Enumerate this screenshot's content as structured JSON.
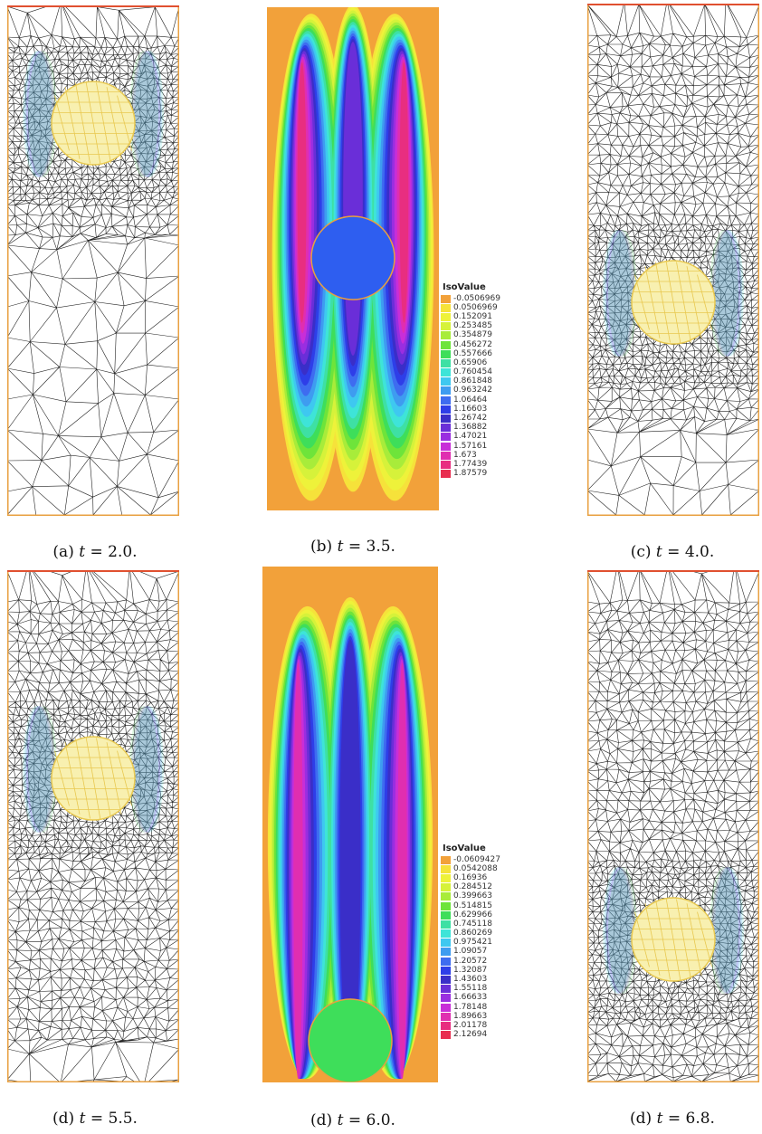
{
  "panels": [
    {
      "id": "a",
      "caption_prefix": "(a) ",
      "caption_var": "t",
      "caption_eq": " = 2.0.",
      "kind": "mesh"
    },
    {
      "id": "b",
      "caption_prefix": "(b) ",
      "caption_var": "t",
      "caption_eq": " = 3.5.",
      "kind": "isovalue"
    },
    {
      "id": "c",
      "caption_prefix": "(c) ",
      "caption_var": "t",
      "caption_eq": " = 4.0.",
      "kind": "mesh"
    },
    {
      "id": "d1",
      "caption_prefix": "(d) ",
      "caption_var": "t",
      "caption_eq": " = 5.5.",
      "kind": "mesh"
    },
    {
      "id": "d2",
      "caption_prefix": "(d) ",
      "caption_var": "t",
      "caption_eq": " = 6.0.",
      "kind": "isovalue"
    },
    {
      "id": "d3",
      "caption_prefix": "(d) ",
      "caption_var": "t",
      "caption_eq": " = 6.8.",
      "kind": "mesh"
    }
  ],
  "legend_top": {
    "title": "IsoValue",
    "values": [
      "-0.0506969",
      "0.0506969",
      "0.152091",
      "0.253485",
      "0.354879",
      "0.456272",
      "0.557666",
      "0.65906",
      "0.760454",
      "0.861848",
      "0.963242",
      "1.06464",
      "1.16603",
      "1.26742",
      "1.36882",
      "1.47021",
      "1.57161",
      "1.673",
      "1.77439",
      "1.87579"
    ]
  },
  "legend_bottom": {
    "title": "IsoValue",
    "values": [
      "-0.0609427",
      "0.0542088",
      "0.16936",
      "0.284512",
      "0.399663",
      "0.514815",
      "0.629966",
      "0.745118",
      "0.860269",
      "0.975421",
      "1.09057",
      "1.20572",
      "1.32087",
      "1.43603",
      "1.55118",
      "1.66633",
      "1.78148",
      "1.89663",
      "2.01178",
      "2.12694"
    ]
  },
  "colors": {
    "scale": [
      "#f2a13a",
      "#f6e23a",
      "#eef23a",
      "#d6f23a",
      "#a8ec3a",
      "#6ee43a",
      "#3ede5a",
      "#3ee0a4",
      "#3ee4d8",
      "#3ec8f0",
      "#3e9cf0",
      "#3e6cf0",
      "#2e3ee8",
      "#3a2ec8",
      "#6a2ed8",
      "#9a2ee0",
      "#c82ed8",
      "#e02eb0",
      "#e82e80",
      "#e82e50"
    ],
    "frame_border": "#e8a040",
    "frame_top": "#e05030",
    "sphere_fill": "#f8f0b0",
    "sphere_line": "#e8c850",
    "mesh_line": "#222222"
  }
}
